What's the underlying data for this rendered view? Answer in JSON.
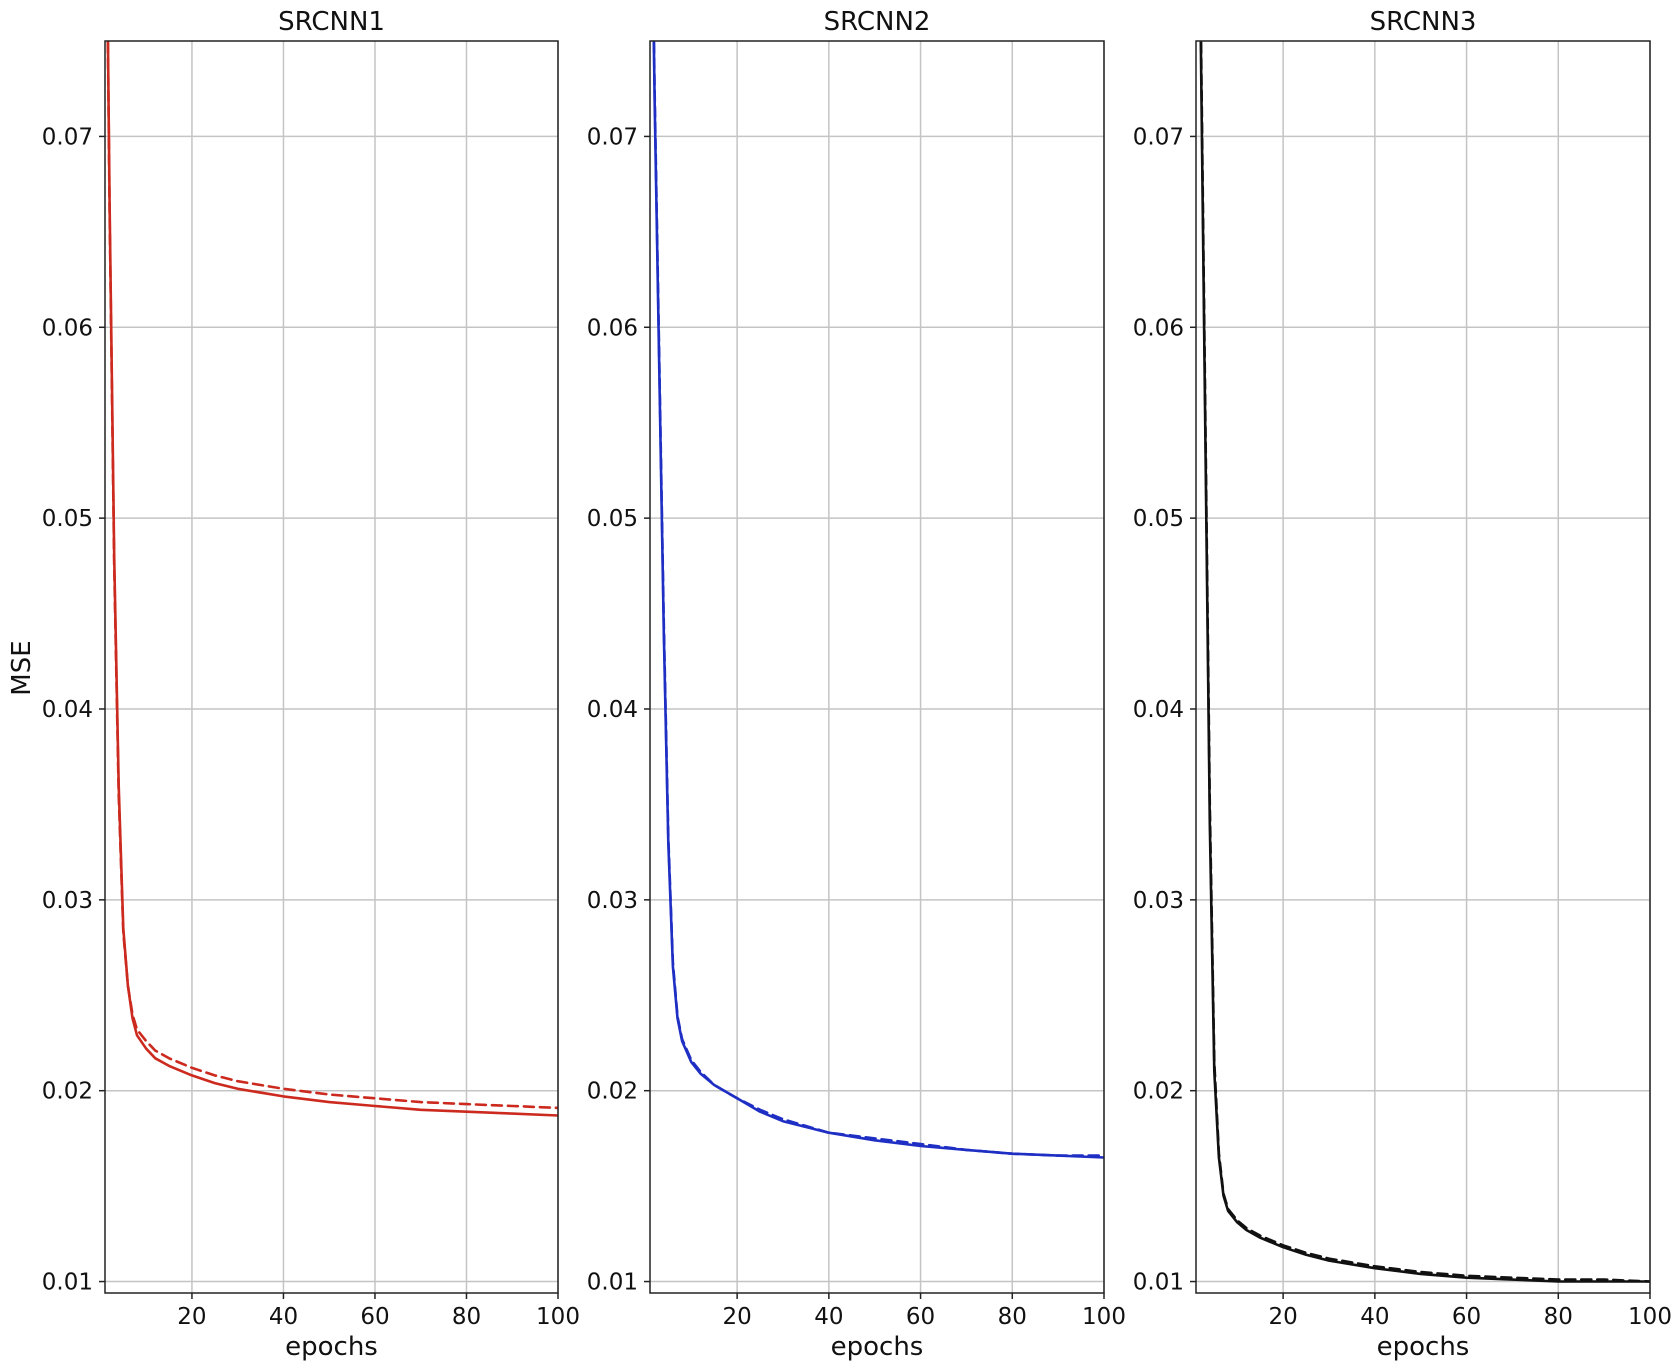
{
  "figure": {
    "ylabel": "MSE"
  },
  "chart_data": [
    {
      "type": "line",
      "title": "SRCNN1",
      "xlabel": "epochs",
      "ylabel": "MSE",
      "xlim": [
        1,
        100
      ],
      "ylim": [
        0.0094,
        0.075
      ],
      "xticks": [
        20,
        40,
        60,
        80,
        100
      ],
      "yticks": [
        0.01,
        0.02,
        0.03,
        0.04,
        0.05,
        0.06,
        0.07
      ],
      "ytick_labels": [
        "0.01",
        "0.02",
        "0.03",
        "0.04",
        "0.05",
        "0.06",
        "0.07"
      ],
      "grid": true,
      "color": "#cc2a1e",
      "series": [
        {
          "style": "solid",
          "x": [
            1,
            2,
            3,
            4,
            5,
            6,
            7,
            8,
            10,
            12,
            15,
            20,
            25,
            30,
            40,
            50,
            60,
            70,
            80,
            90,
            100
          ],
          "y": [
            0.09,
            0.0665,
            0.048,
            0.036,
            0.0285,
            0.0255,
            0.0238,
            0.0229,
            0.0222,
            0.0217,
            0.0213,
            0.0208,
            0.0204,
            0.0201,
            0.0197,
            0.0194,
            0.0192,
            0.019,
            0.0189,
            0.0188,
            0.0187
          ]
        },
        {
          "style": "dashed",
          "x": [
            1,
            2,
            3,
            4,
            5,
            6,
            7,
            8,
            10,
            12,
            15,
            20,
            25,
            30,
            40,
            50,
            60,
            70,
            80,
            90,
            100
          ],
          "y": [
            0.09,
            0.066,
            0.0475,
            0.0355,
            0.0283,
            0.0255,
            0.024,
            0.0232,
            0.0226,
            0.0221,
            0.0217,
            0.0212,
            0.0208,
            0.0205,
            0.0201,
            0.0198,
            0.0196,
            0.0194,
            0.0193,
            0.0192,
            0.0191
          ]
        }
      ]
    },
    {
      "type": "line",
      "title": "SRCNN2",
      "xlabel": "epochs",
      "xlim": [
        1,
        100
      ],
      "ylim": [
        0.0094,
        0.075
      ],
      "xticks": [
        20,
        40,
        60,
        80,
        100
      ],
      "yticks": [
        0.01,
        0.02,
        0.03,
        0.04,
        0.05,
        0.06,
        0.07
      ],
      "ytick_labels": [
        "0.01",
        "0.02",
        "0.03",
        "0.04",
        "0.05",
        "0.06",
        "0.07"
      ],
      "grid": true,
      "color": "#1f2fc4",
      "series": [
        {
          "style": "solid",
          "x": [
            1,
            2,
            3,
            4,
            5,
            6,
            7,
            8,
            10,
            12,
            15,
            20,
            25,
            30,
            40,
            50,
            60,
            70,
            80,
            90,
            100
          ],
          "y": [
            0.09,
            0.072,
            0.058,
            0.044,
            0.033,
            0.0265,
            0.0238,
            0.0226,
            0.0215,
            0.0209,
            0.0203,
            0.0196,
            0.0189,
            0.0184,
            0.0178,
            0.0174,
            0.0171,
            0.0169,
            0.0167,
            0.0166,
            0.0165
          ]
        },
        {
          "style": "dashed",
          "x": [
            1,
            2,
            3,
            4,
            5,
            6,
            7,
            8,
            10,
            12,
            15,
            20,
            25,
            30,
            40,
            50,
            60,
            70,
            80,
            90,
            100
          ],
          "y": [
            0.09,
            0.0725,
            0.0585,
            0.0445,
            0.0333,
            0.0267,
            0.0239,
            0.0227,
            0.0216,
            0.021,
            0.0203,
            0.0196,
            0.019,
            0.0185,
            0.0178,
            0.0175,
            0.0172,
            0.0169,
            0.0167,
            0.0166,
            0.0166
          ]
        }
      ]
    },
    {
      "type": "line",
      "title": "SRCNN3",
      "xlabel": "epochs",
      "xlim": [
        1,
        100
      ],
      "ylim": [
        0.0094,
        0.075
      ],
      "xticks": [
        20,
        40,
        60,
        80,
        100
      ],
      "yticks": [
        0.01,
        0.02,
        0.03,
        0.04,
        0.05,
        0.06,
        0.07
      ],
      "ytick_labels": [
        "0.01",
        "0.02",
        "0.03",
        "0.04",
        "0.05",
        "0.06",
        "0.07"
      ],
      "grid": true,
      "color": "#111111",
      "series": [
        {
          "style": "solid",
          "x": [
            1,
            2,
            3,
            4,
            5,
            6,
            7,
            8,
            10,
            12,
            15,
            20,
            25,
            30,
            40,
            50,
            60,
            70,
            80,
            90,
            100
          ],
          "y": [
            0.09,
            0.076,
            0.055,
            0.034,
            0.021,
            0.0165,
            0.0145,
            0.0137,
            0.0131,
            0.0127,
            0.0123,
            0.0118,
            0.0114,
            0.0111,
            0.0107,
            0.0104,
            0.0102,
            0.0101,
            0.01,
            0.01,
            0.01
          ]
        },
        {
          "style": "dashed",
          "x": [
            1,
            2,
            3,
            4,
            5,
            6,
            7,
            8,
            10,
            12,
            15,
            20,
            25,
            30,
            40,
            50,
            60,
            70,
            80,
            90,
            100
          ],
          "y": [
            0.09,
            0.077,
            0.056,
            0.035,
            0.0215,
            0.0167,
            0.0146,
            0.0138,
            0.0132,
            0.0128,
            0.0124,
            0.0119,
            0.0115,
            0.0112,
            0.0108,
            0.0105,
            0.0103,
            0.0102,
            0.0101,
            0.0101,
            0.01
          ]
        }
      ]
    }
  ]
}
